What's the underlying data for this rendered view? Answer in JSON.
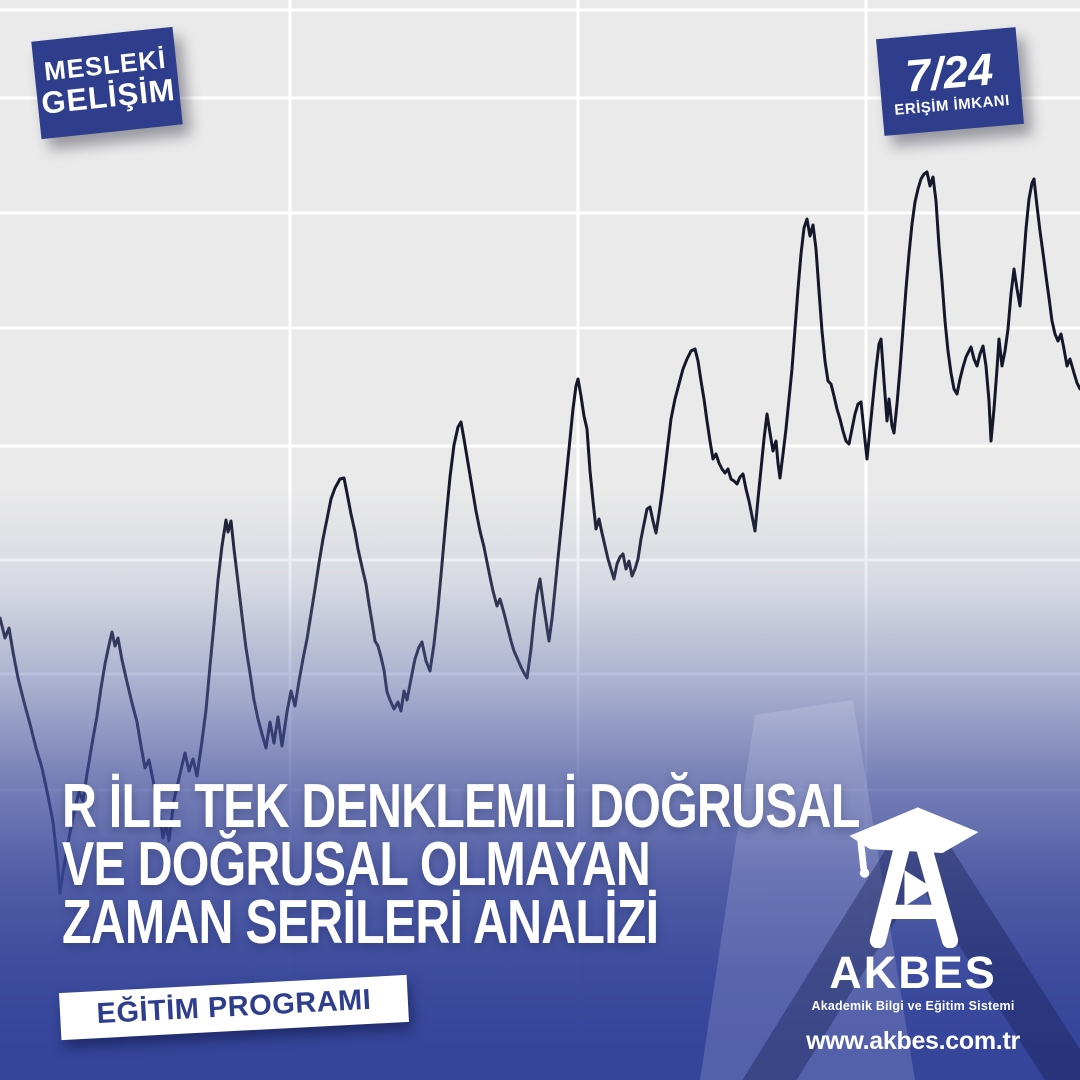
{
  "badges": {
    "top_left": {
      "line1": "MESLEKİ",
      "line2": "GELİŞİM"
    },
    "top_right": {
      "big": "7/24",
      "small": "ERİŞİM İMKANI"
    },
    "program": {
      "label": "EĞİTİM PROGRAMI"
    }
  },
  "title": {
    "line1": "R İLE TEK DENKLEMLİ DOĞRUSAL",
    "line2": "VE DOĞRUSAL OLMAYAN",
    "line3": "ZAMAN SERİLERİ ANALİZİ"
  },
  "logo": {
    "name": "AKBES",
    "tagline": "Akademik Bilgi ve Eğitim Sistemi",
    "website": "www.akbes.com.tr"
  },
  "colors": {
    "badge_blue": "#2e3e8d",
    "gradient_deep_blue": "#35459a",
    "chart_background": "#eaeaea",
    "gridline": "#ffffff",
    "series_line": "#15172b",
    "text_white": "#ffffff"
  },
  "chart_data": {
    "type": "line",
    "title": "",
    "xlabel": "",
    "ylabel": "",
    "note": "decorative background time series (no axis labels visible); coordinates in canvas pixels, y down",
    "coordinate_space": "canvas_px_1080",
    "gridlines": {
      "vertical_x": [
        290,
        578,
        866
      ],
      "horizontal_y": [
        10,
        98,
        213,
        328,
        446,
        560,
        674,
        790
      ]
    },
    "points": [
      [
        0,
        618
      ],
      [
        5,
        638
      ],
      [
        9,
        628
      ],
      [
        13,
        652
      ],
      [
        18,
        678
      ],
      [
        24,
        702
      ],
      [
        30,
        724
      ],
      [
        36,
        748
      ],
      [
        42,
        768
      ],
      [
        48,
        796
      ],
      [
        53,
        822
      ],
      [
        57,
        858
      ],
      [
        60,
        893
      ],
      [
        64,
        866
      ],
      [
        69,
        838
      ],
      [
        74,
        812
      ],
      [
        79,
        792
      ],
      [
        83,
        801
      ],
      [
        87,
        774
      ],
      [
        92,
        744
      ],
      [
        97,
        716
      ],
      [
        101,
        688
      ],
      [
        105,
        664
      ],
      [
        109,
        645
      ],
      [
        112,
        632
      ],
      [
        115,
        646
      ],
      [
        118,
        638
      ],
      [
        122,
        660
      ],
      [
        127,
        682
      ],
      [
        132,
        703
      ],
      [
        137,
        722
      ],
      [
        141,
        746
      ],
      [
        145,
        768
      ],
      [
        149,
        760
      ],
      [
        153,
        780
      ],
      [
        158,
        806
      ],
      [
        163,
        838
      ],
      [
        166,
        824
      ],
      [
        169,
        841
      ],
      [
        174,
        800
      ],
      [
        180,
        774
      ],
      [
        185,
        753
      ],
      [
        189,
        771
      ],
      [
        193,
        759
      ],
      [
        197,
        776
      ],
      [
        202,
        741
      ],
      [
        206,
        710
      ],
      [
        210,
        666
      ],
      [
        214,
        624
      ],
      [
        218,
        580
      ],
      [
        222,
        546
      ],
      [
        226,
        520
      ],
      [
        228,
        532
      ],
      [
        231,
        521
      ],
      [
        234,
        549
      ],
      [
        238,
        582
      ],
      [
        242,
        616
      ],
      [
        246,
        648
      ],
      [
        250,
        673
      ],
      [
        254,
        700
      ],
      [
        258,
        719
      ],
      [
        262,
        734
      ],
      [
        266,
        748
      ],
      [
        270,
        722
      ],
      [
        274,
        743
      ],
      [
        278,
        717
      ],
      [
        282,
        746
      ],
      [
        287,
        712
      ],
      [
        291,
        691
      ],
      [
        295,
        706
      ],
      [
        299,
        681
      ],
      [
        303,
        659
      ],
      [
        307,
        639
      ],
      [
        311,
        614
      ],
      [
        315,
        589
      ],
      [
        319,
        563
      ],
      [
        323,
        539
      ],
      [
        327,
        519
      ],
      [
        331,
        499
      ],
      [
        335,
        488
      ],
      [
        340,
        479
      ],
      [
        344,
        478
      ],
      [
        347,
        493
      ],
      [
        351,
        514
      ],
      [
        355,
        532
      ],
      [
        358,
        549
      ],
      [
        362,
        567
      ],
      [
        366,
        584
      ],
      [
        369,
        604
      ],
      [
        372,
        622
      ],
      [
        375,
        641
      ],
      [
        378,
        646
      ],
      [
        381,
        657
      ],
      [
        384,
        670
      ],
      [
        387,
        692
      ],
      [
        390,
        700
      ],
      [
        394,
        709
      ],
      [
        398,
        702
      ],
      [
        401,
        711
      ],
      [
        404,
        691
      ],
      [
        407,
        700
      ],
      [
        411,
        679
      ],
      [
        415,
        659
      ],
      [
        419,
        647
      ],
      [
        422,
        642
      ],
      [
        426,
        661
      ],
      [
        430,
        671
      ],
      [
        434,
        644
      ],
      [
        438,
        608
      ],
      [
        442,
        564
      ],
      [
        446,
        519
      ],
      [
        450,
        477
      ],
      [
        454,
        445
      ],
      [
        458,
        427
      ],
      [
        461,
        422
      ],
      [
        464,
        439
      ],
      [
        468,
        463
      ],
      [
        472,
        487
      ],
      [
        476,
        511
      ],
      [
        480,
        531
      ],
      [
        484,
        547
      ],
      [
        487,
        562
      ],
      [
        490,
        577
      ],
      [
        493,
        591
      ],
      [
        497,
        606
      ],
      [
        500,
        599
      ],
      [
        504,
        613
      ],
      [
        508,
        629
      ],
      [
        511,
        641
      ],
      [
        514,
        651
      ],
      [
        518,
        660
      ],
      [
        521,
        667
      ],
      [
        524,
        673
      ],
      [
        527,
        678
      ],
      [
        531,
        649
      ],
      [
        534,
        619
      ],
      [
        537,
        594
      ],
      [
        540,
        579
      ],
      [
        543,
        601
      ],
      [
        546,
        621
      ],
      [
        549,
        641
      ],
      [
        552,
        619
      ],
      [
        555,
        589
      ],
      [
        558,
        558
      ],
      [
        562,
        519
      ],
      [
        566,
        479
      ],
      [
        570,
        439
      ],
      [
        573,
        409
      ],
      [
        576,
        386
      ],
      [
        578,
        379
      ],
      [
        581,
        396
      ],
      [
        584,
        416
      ],
      [
        587,
        429
      ],
      [
        590,
        471
      ],
      [
        593,
        501
      ],
      [
        596,
        529
      ],
      [
        599,
        519
      ],
      [
        602,
        533
      ],
      [
        605,
        546
      ],
      [
        608,
        559
      ],
      [
        611,
        569
      ],
      [
        614,
        579
      ],
      [
        617,
        564
      ],
      [
        620,
        557
      ],
      [
        623,
        554
      ],
      [
        626,
        569
      ],
      [
        629,
        561
      ],
      [
        632,
        576
      ],
      [
        635,
        569
      ],
      [
        638,
        559
      ],
      [
        641,
        539
      ],
      [
        644,
        524
      ],
      [
        647,
        509
      ],
      [
        650,
        507
      ],
      [
        653,
        521
      ],
      [
        656,
        533
      ],
      [
        659,
        514
      ],
      [
        662,
        493
      ],
      [
        665,
        469
      ],
      [
        668,
        444
      ],
      [
        671,
        419
      ],
      [
        675,
        399
      ],
      [
        679,
        384
      ],
      [
        683,
        369
      ],
      [
        687,
        359
      ],
      [
        691,
        351
      ],
      [
        695,
        349
      ],
      [
        698,
        361
      ],
      [
        701,
        381
      ],
      [
        704,
        399
      ],
      [
        707,
        421
      ],
      [
        710,
        441
      ],
      [
        713,
        459
      ],
      [
        716,
        454
      ],
      [
        719,
        463
      ],
      [
        722,
        469
      ],
      [
        725,
        473
      ],
      [
        728,
        469
      ],
      [
        731,
        479
      ],
      [
        734,
        481
      ],
      [
        737,
        484
      ],
      [
        740,
        477
      ],
      [
        743,
        474
      ],
      [
        746,
        489
      ],
      [
        749,
        501
      ],
      [
        752,
        516
      ],
      [
        755,
        531
      ],
      [
        758,
        499
      ],
      [
        761,
        469
      ],
      [
        764,
        439
      ],
      [
        767,
        414
      ],
      [
        770,
        433
      ],
      [
        773,
        451
      ],
      [
        776,
        441
      ],
      [
        778,
        463
      ],
      [
        780,
        478
      ],
      [
        783,
        454
      ],
      [
        786,
        429
      ],
      [
        789,
        399
      ],
      [
        792,
        369
      ],
      [
        795,
        329
      ],
      [
        798,
        289
      ],
      [
        801,
        254
      ],
      [
        804,
        228
      ],
      [
        807,
        219
      ],
      [
        810,
        236
      ],
      [
        813,
        225
      ],
      [
        816,
        249
      ],
      [
        819,
        291
      ],
      [
        822,
        331
      ],
      [
        825,
        361
      ],
      [
        828,
        381
      ],
      [
        831,
        384
      ],
      [
        834,
        396
      ],
      [
        837,
        409
      ],
      [
        840,
        419
      ],
      [
        843,
        431
      ],
      [
        846,
        441
      ],
      [
        849,
        444
      ],
      [
        852,
        429
      ],
      [
        855,
        414
      ],
      [
        858,
        404
      ],
      [
        861,
        402
      ],
      [
        864,
        431
      ],
      [
        867,
        459
      ],
      [
        870,
        429
      ],
      [
        873,
        399
      ],
      [
        876,
        369
      ],
      [
        879,
        344
      ],
      [
        881,
        339
      ],
      [
        884,
        381
      ],
      [
        887,
        421
      ],
      [
        889,
        399
      ],
      [
        892,
        426
      ],
      [
        894,
        433
      ],
      [
        897,
        404
      ],
      [
        900,
        369
      ],
      [
        903,
        329
      ],
      [
        906,
        289
      ],
      [
        909,
        254
      ],
      [
        912,
        224
      ],
      [
        915,
        202
      ],
      [
        918,
        189
      ],
      [
        921,
        179
      ],
      [
        924,
        174
      ],
      [
        927,
        172
      ],
      [
        930,
        186
      ],
      [
        933,
        177
      ],
      [
        936,
        201
      ],
      [
        939,
        246
      ],
      [
        942,
        281
      ],
      [
        945,
        321
      ],
      [
        948,
        351
      ],
      [
        951,
        373
      ],
      [
        954,
        389
      ],
      [
        957,
        394
      ],
      [
        960,
        379
      ],
      [
        963,
        367
      ],
      [
        966,
        357
      ],
      [
        969,
        351
      ],
      [
        971,
        347
      ],
      [
        974,
        359
      ],
      [
        977,
        366
      ],
      [
        980,
        354
      ],
      [
        983,
        346
      ],
      [
        986,
        366
      ],
      [
        989,
        401
      ],
      [
        991,
        441
      ],
      [
        994,
        409
      ],
      [
        997,
        369
      ],
      [
        999,
        339
      ],
      [
        1002,
        366
      ],
      [
        1005,
        351
      ],
      [
        1008,
        329
      ],
      [
        1011,
        294
      ],
      [
        1014,
        269
      ],
      [
        1017,
        289
      ],
      [
        1020,
        306
      ],
      [
        1023,
        269
      ],
      [
        1026,
        229
      ],
      [
        1029,
        199
      ],
      [
        1032,
        183
      ],
      [
        1034,
        179
      ],
      [
        1037,
        206
      ],
      [
        1040,
        231
      ],
      [
        1043,
        253
      ],
      [
        1046,
        276
      ],
      [
        1049,
        298
      ],
      [
        1052,
        321
      ],
      [
        1055,
        334
      ],
      [
        1058,
        341
      ],
      [
        1061,
        334
      ],
      [
        1064,
        349
      ],
      [
        1067,
        366
      ],
      [
        1070,
        359
      ],
      [
        1074,
        373
      ],
      [
        1077,
        383
      ],
      [
        1080,
        389
      ]
    ]
  }
}
